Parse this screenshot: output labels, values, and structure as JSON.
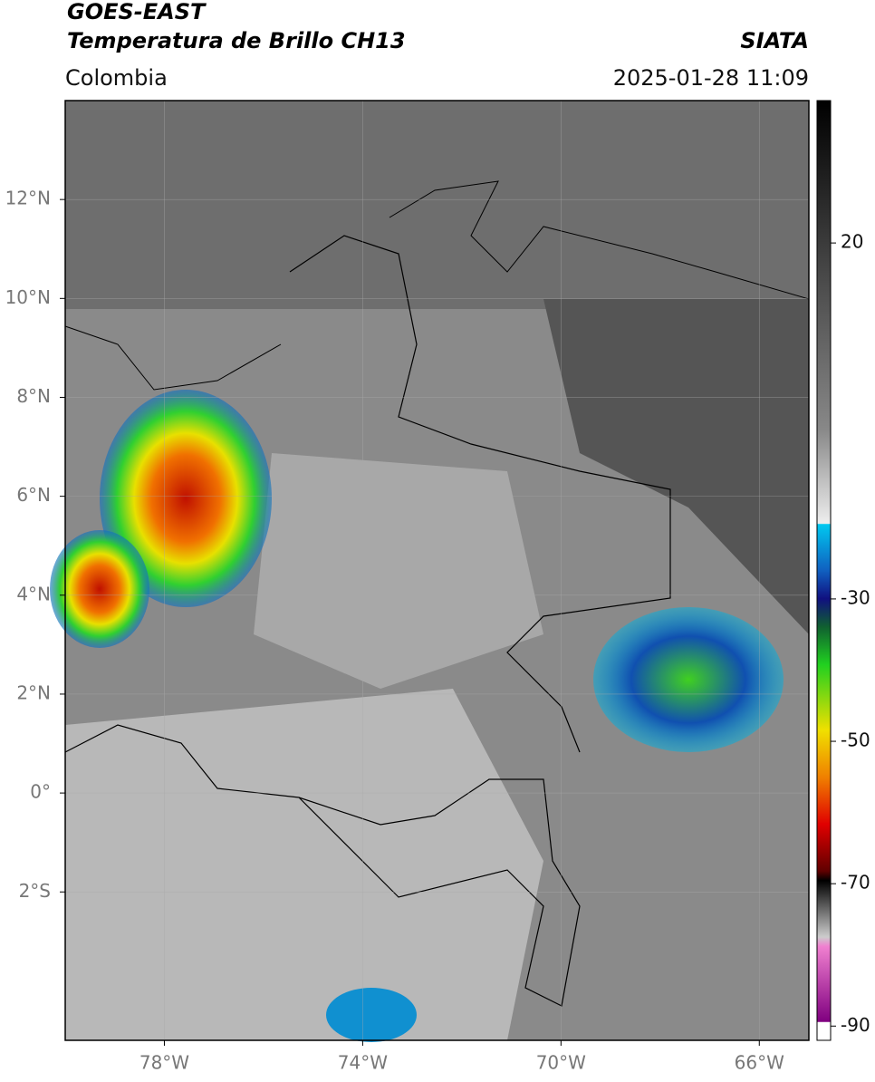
{
  "header": {
    "title": "GOES-EAST",
    "subtitle": "Temperatura de Brillo CH13",
    "region": "Colombia",
    "brand": "SIATA",
    "datetime": "2025-01-28 11:09"
  },
  "map": {
    "xlim": [
      -80,
      -65
    ],
    "ylim": [
      -5,
      14
    ],
    "xticks": [
      {
        "value": -78,
        "label": "78°W"
      },
      {
        "value": -74,
        "label": "74°W"
      },
      {
        "value": -70,
        "label": "70°W"
      },
      {
        "value": -66,
        "label": "66°W"
      }
    ],
    "yticks": [
      {
        "value": 12,
        "label": "12°N"
      },
      {
        "value": 10,
        "label": "10°N"
      },
      {
        "value": 8,
        "label": "8°N"
      },
      {
        "value": 6,
        "label": "6°N"
      },
      {
        "value": 4,
        "label": "4°N"
      },
      {
        "value": 2,
        "label": "2°N"
      },
      {
        "value": 0,
        "label": "0°"
      },
      {
        "value": -2,
        "label": "2°S"
      }
    ]
  },
  "colorbar": {
    "lim": [
      -92,
      40
    ],
    "ticks": [
      20,
      -30,
      -50,
      -70,
      -90
    ]
  }
}
